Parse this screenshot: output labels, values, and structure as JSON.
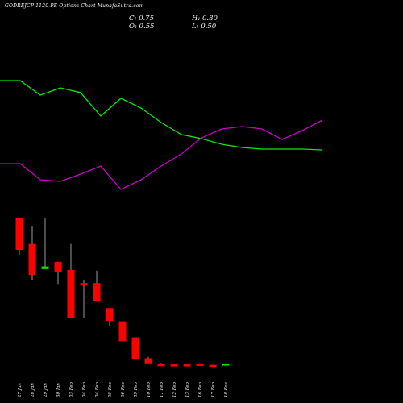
{
  "header": {
    "title": "GODREJCP 1120  PE Options  Chart MunafaSutra.com",
    "close": "C: 0.75",
    "high": "H: 0.80",
    "open": "O: 0.55",
    "low": "L: 0.50"
  },
  "chart_data": {
    "type": "candlestick",
    "title": "GODREJCP 1120  PE Options  Chart MunafaSutra.com",
    "categories": [
      "27 Jan",
      "28 Jan",
      "29 Jan",
      "30 Jan",
      "03 Feb",
      "04 Feb",
      "04 Feb",
      "05 Feb",
      "06 Feb",
      "09 Feb",
      "10 Feb",
      "11 Feb",
      "12 Feb",
      "13 Feb",
      "16 Feb",
      "17 Feb",
      "18 Feb"
    ],
    "ohlc": [
      {
        "o": 35.0,
        "h": 35.0,
        "l": 26.4,
        "c": 27.5
      },
      {
        "o": 28.9,
        "h": 33.0,
        "l": 20.5,
        "c": 21.6
      },
      {
        "o": 23.0,
        "h": 35.0,
        "l": 23.0,
        "c": 23.6
      },
      {
        "o": 24.7,
        "h": 24.7,
        "l": 19.5,
        "c": 22.3
      },
      {
        "o": 22.8,
        "h": 28.9,
        "l": 11.5,
        "c": 11.5
      },
      {
        "o": 19.7,
        "h": 20.5,
        "l": 11.5,
        "c": 19.2
      },
      {
        "o": 19.7,
        "h": 22.6,
        "l": 15.3,
        "c": 15.4
      },
      {
        "o": 13.8,
        "h": 13.8,
        "l": 9.5,
        "c": 10.8
      },
      {
        "o": 10.7,
        "h": 10.7,
        "l": 6.0,
        "c": 6.0
      },
      {
        "o": 6.9,
        "h": 6.9,
        "l": 1.9,
        "c": 1.9
      },
      {
        "o": 2.0,
        "h": 2.3,
        "l": 0.8,
        "c": 0.8
      },
      {
        "o": 0.6,
        "h": 0.9,
        "l": 0.3,
        "c": 0.3
      },
      {
        "o": 0.55,
        "h": 0.6,
        "l": 0.4,
        "c": 0.45
      },
      {
        "o": 0.55,
        "h": 0.6,
        "l": 0.45,
        "c": 0.5
      },
      {
        "o": 0.7,
        "h": 0.8,
        "l": 0.25,
        "c": 0.3
      },
      {
        "o": 0.45,
        "h": 0.5,
        "l": 0.2,
        "c": 0.25
      },
      {
        "o": 0.55,
        "h": 0.8,
        "l": 0.5,
        "c": 0.75
      }
    ],
    "series": [
      {
        "values": [
          100,
          100,
          118,
          109,
          115,
          144,
          122,
          134,
          152,
          167,
          172,
          179,
          183,
          185,
          185,
          185,
          186
        ],
        "color": "#00ee00"
      },
      {
        "values": [
          203,
          203,
          223,
          225,
          216,
          206,
          235,
          223,
          206,
          191,
          171,
          160,
          157,
          160,
          173,
          162,
          149
        ],
        "color": "#cc00cc"
      }
    ],
    "line_range": [
      80,
      245
    ],
    "price_range": [
      0,
      37
    ],
    "colors": {
      "up": "#00ee00",
      "down": "#ff0000",
      "wick": "#999999"
    }
  }
}
